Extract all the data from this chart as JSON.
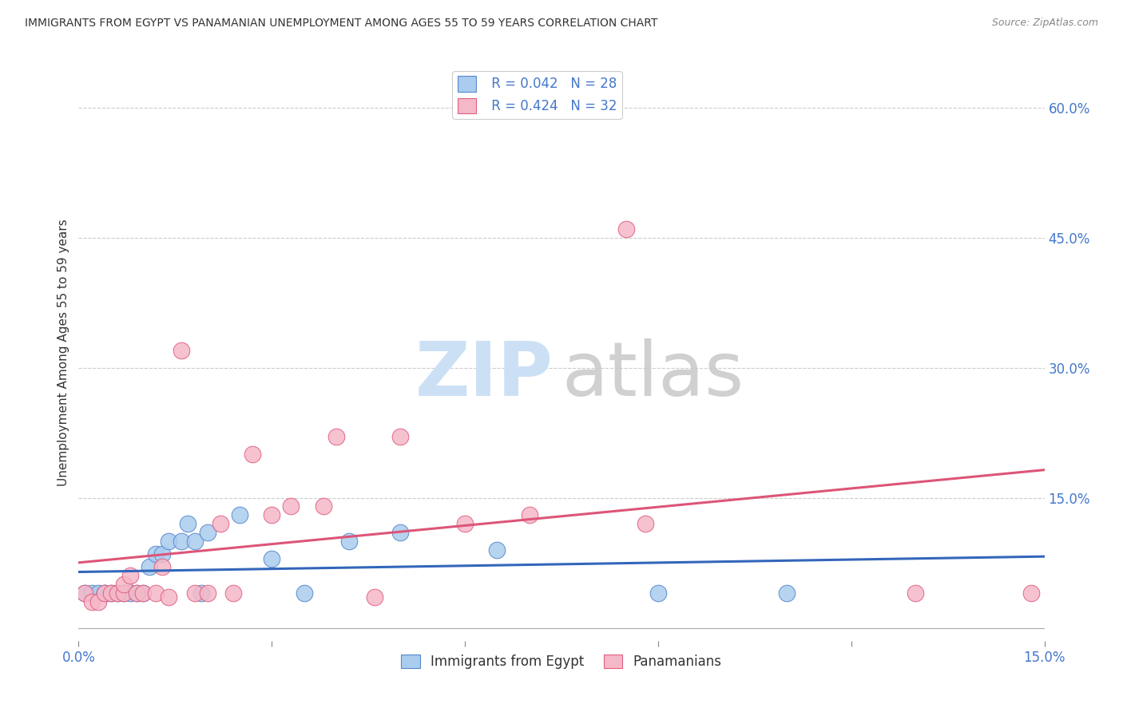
{
  "title": "IMMIGRANTS FROM EGYPT VS PANAMANIAN UNEMPLOYMENT AMONG AGES 55 TO 59 YEARS CORRELATION CHART",
  "source": "Source: ZipAtlas.com",
  "ylabel": "Unemployment Among Ages 55 to 59 years",
  "xlim": [
    0.0,
    0.15
  ],
  "ylim": [
    -0.015,
    0.65
  ],
  "y_ticks_right": [
    0.0,
    0.15,
    0.3,
    0.45,
    0.6
  ],
  "y_tick_labels_right": [
    "",
    "15.0%",
    "30.0%",
    "45.0%",
    "60.0%"
  ],
  "x_tick_positions": [
    0.0,
    0.03,
    0.06,
    0.09,
    0.12,
    0.15
  ],
  "x_tick_labels": [
    "0.0%",
    "",
    "",
    "",
    "",
    "15.0%"
  ],
  "legend_r1": "R = 0.042",
  "legend_n1": "N = 28",
  "legend_r2": "R = 0.424",
  "legend_n2": "N = 32",
  "color_egypt_fill": "#aaccee",
  "color_egypt_edge": "#5588cc",
  "color_panama_fill": "#f5b8c8",
  "color_panama_edge": "#e06080",
  "color_line_egypt": "#3366bb",
  "color_line_panama": "#dd5577",
  "egypt_x": [
    0.001,
    0.002,
    0.003,
    0.004,
    0.004,
    0.005,
    0.006,
    0.007,
    0.008,
    0.009,
    0.01,
    0.011,
    0.012,
    0.013,
    0.014,
    0.016,
    0.017,
    0.018,
    0.019,
    0.02,
    0.025,
    0.03,
    0.035,
    0.042,
    0.05,
    0.065,
    0.09,
    0.11
  ],
  "egypt_y": [
    0.04,
    0.04,
    0.04,
    0.04,
    0.04,
    0.04,
    0.04,
    0.04,
    0.04,
    0.04,
    0.04,
    0.07,
    0.085,
    0.085,
    0.1,
    0.1,
    0.12,
    0.1,
    0.04,
    0.11,
    0.13,
    0.08,
    0.04,
    0.1,
    0.11,
    0.09,
    0.04,
    0.04
  ],
  "panama_x": [
    0.001,
    0.002,
    0.003,
    0.004,
    0.005,
    0.006,
    0.007,
    0.007,
    0.008,
    0.009,
    0.01,
    0.012,
    0.013,
    0.014,
    0.016,
    0.018,
    0.02,
    0.022,
    0.024,
    0.027,
    0.03,
    0.033,
    0.038,
    0.04,
    0.046,
    0.05,
    0.06,
    0.07,
    0.085,
    0.088,
    0.13,
    0.148
  ],
  "panama_y": [
    0.04,
    0.03,
    0.03,
    0.04,
    0.04,
    0.04,
    0.04,
    0.05,
    0.06,
    0.04,
    0.04,
    0.04,
    0.07,
    0.035,
    0.32,
    0.04,
    0.04,
    0.12,
    0.04,
    0.2,
    0.13,
    0.14,
    0.14,
    0.22,
    0.035,
    0.22,
    0.12,
    0.13,
    0.46,
    0.12,
    0.04,
    0.04
  ],
  "grid_color": "#cccccc",
  "background_color": "#ffffff",
  "watermark_zip_color": "#cce0f5",
  "watermark_atlas_color": "#c8c8c8"
}
